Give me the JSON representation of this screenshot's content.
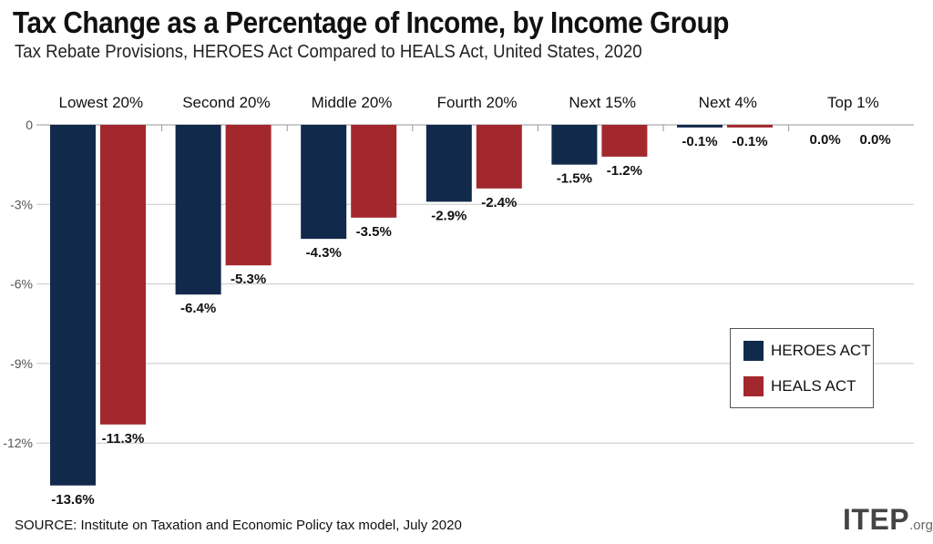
{
  "title": "Tax Change as a Percentage of Income, by Income Group",
  "subtitle": "Tax Rebate Provisions, HEROES Act Compared to HEALS Act, United States, 2020",
  "source": "SOURCE: Institute on Taxation and Economic Policy tax model, July 2020",
  "logo": {
    "main": "ITEP",
    "suffix": ".org"
  },
  "colors": {
    "heroes": "#11294b",
    "heals": "#a3282d",
    "grid": "#c8c8c8"
  },
  "chart_data": {
    "type": "bar",
    "title": "Tax Change as a Percentage of Income, by Income Group",
    "xlabel": "",
    "ylabel": "",
    "ylim": [
      -13.6,
      0
    ],
    "categories": [
      "Lowest 20%",
      "Second 20%",
      "Middle 20%",
      "Fourth 20%",
      "Next 15%",
      "Next 4%",
      "Top 1%"
    ],
    "yticks": [
      0,
      -3,
      -6,
      -9,
      -12
    ],
    "ytick_labels": [
      "0",
      "-3%",
      "-6%",
      "-9%",
      "-12%"
    ],
    "series": [
      {
        "name": "HEROES ACT",
        "values": [
          -13.6,
          -6.4,
          -4.3,
          -2.9,
          -1.5,
          -0.1,
          0.0
        ],
        "labels": [
          "-13.6%",
          "-6.4%",
          "-4.3%",
          "-2.9%",
          "-1.5%",
          "-0.1%",
          "0.0%"
        ]
      },
      {
        "name": "HEALS ACT",
        "values": [
          -11.3,
          -5.3,
          -3.5,
          -2.4,
          -1.2,
          -0.1,
          0.0
        ],
        "labels": [
          "-11.3%",
          "-5.3%",
          "-3.5%",
          "-2.4%",
          "-1.2%",
          "-0.1%",
          "0.0%"
        ]
      }
    ],
    "legend": [
      "HEROES ACT",
      "HEALS ACT"
    ],
    "legend_position": "right"
  }
}
